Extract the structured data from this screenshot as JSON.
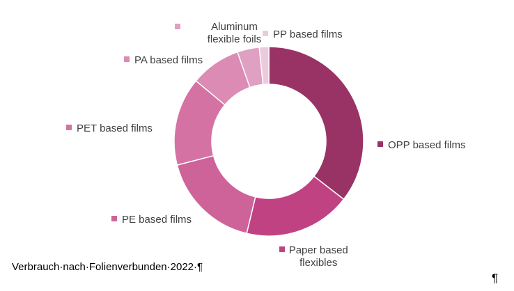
{
  "chart_data": {
    "type": "pie",
    "style": "donut",
    "slices": [
      {
        "label": "OPP based films",
        "value": 33,
        "color": "#993366"
      },
      {
        "label": "Paper based flexibles",
        "value": 17,
        "color": "#c14283"
      },
      {
        "label": "PE based films",
        "value": 16,
        "color": "#cd6399"
      },
      {
        "label": "PET based films",
        "value": 14,
        "color": "#d472a4"
      },
      {
        "label": "PA based films",
        "value": 8,
        "color": "#db8bb4"
      },
      {
        "label": "Aluminum flexible foils",
        "value": 3.5,
        "color": "#dfa0c2"
      },
      {
        "label": "PP based films",
        "value": 1.5,
        "color": "#ebcbdb"
      }
    ]
  },
  "caption": "Verbrauch·nach·Folienverbunden·2022·¶",
  "pilcrow": "¶"
}
